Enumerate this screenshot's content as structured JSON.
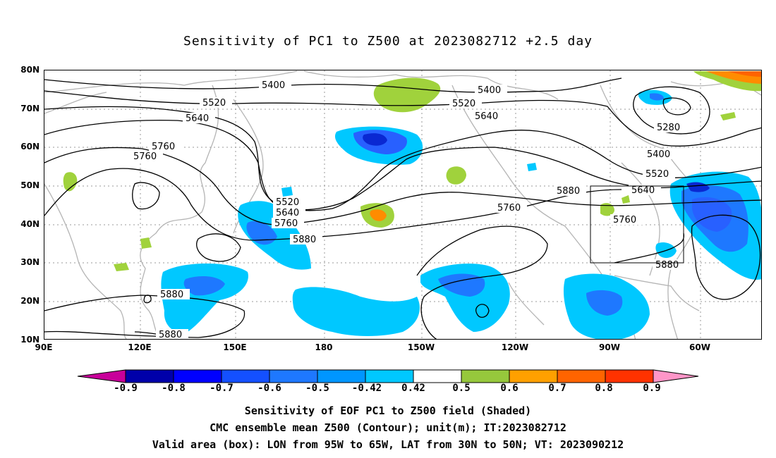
{
  "title": "Sensitivity of PC1 to Z500 at 2023082712 +2.5 day",
  "map": {
    "lat_labels": [
      "80N",
      "70N",
      "60N",
      "50N",
      "40N",
      "30N",
      "20N",
      "10N"
    ],
    "lon_labels": [
      "90E",
      "120E",
      "150E",
      "180",
      "150W",
      "120W",
      "90W",
      "60W"
    ],
    "contour_labels": [
      "5400",
      "5400",
      "5520",
      "5520",
      "5640",
      "5640",
      "5760",
      "5760",
      "5520",
      "5640",
      "5760",
      "5880",
      "5760",
      "5880",
      "5280",
      "5400",
      "5520",
      "5640",
      "5760",
      "5880",
      "5880",
      "5880"
    ],
    "valid_box": {
      "lon": [
        "95W",
        "65W"
      ],
      "lat": [
        "30N",
        "50N"
      ]
    },
    "shading_colors": {
      "green": "#a0d23c",
      "orange": "#ff8c00",
      "light_blue": "#00c8ff",
      "mid_blue": "#0096ff",
      "blue": "#2860ff",
      "dark_blue": "#0a28d2",
      "coast": "#b4b4b4"
    }
  },
  "colorbar": {
    "labels": [
      "-0.9",
      "-0.8",
      "-0.7",
      "-0.6",
      "-0.5",
      "-0.42",
      "0.42",
      "0.5",
      "0.6",
      "0.7",
      "0.8",
      "0.9"
    ],
    "colors": [
      "#c8009a",
      "#0000aa",
      "#0000ff",
      "#1450ff",
      "#1e78ff",
      "#0096ff",
      "#00c8ff",
      "#ffffff",
      "#96c83c",
      "#ffa000",
      "#ff6400",
      "#ff3200",
      "#ff0000",
      "#ff96c8"
    ]
  },
  "captions": {
    "line1": "Sensitivity of EOF PC1 to Z500 field (Shaded)",
    "line2": "CMC ensemble mean Z500 (Contour); unit(m); IT:2023082712",
    "line3": "Valid area (box): LON from 95W to 65W, LAT from 30N to 50N; VT: 2023090212"
  }
}
